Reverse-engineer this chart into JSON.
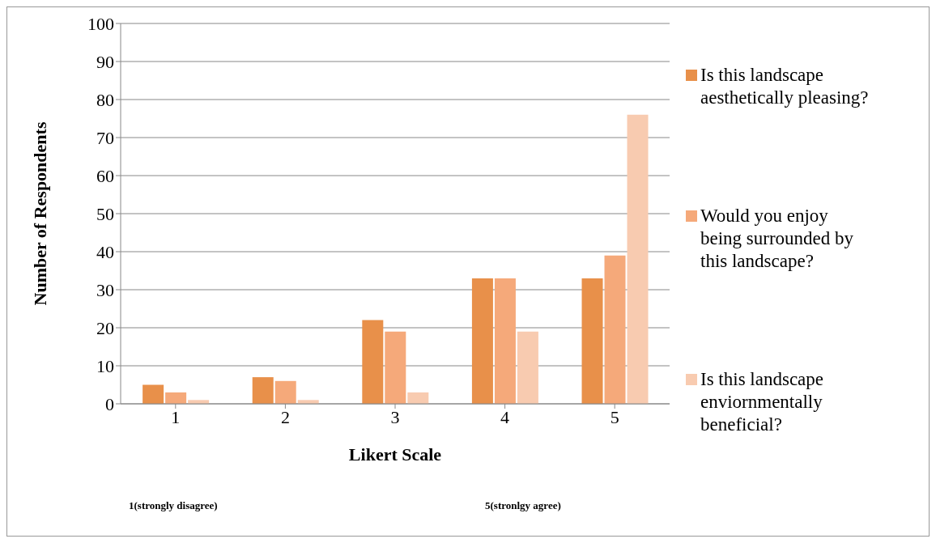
{
  "chart_data": {
    "type": "bar",
    "xlabel": "Likert Scale",
    "ylabel": "Number of Respondents",
    "categories": [
      "1",
      "2",
      "3",
      "4",
      "5"
    ],
    "series": [
      {
        "name": "Is this landscape aesthetically pleasing?",
        "color": "#e8904a",
        "values": [
          5,
          7,
          22,
          33,
          33
        ]
      },
      {
        "name": "Would you enjoy being surrounded by this landscape?",
        "color": "#f5a97a",
        "values": [
          3,
          6,
          19,
          33,
          39
        ]
      },
      {
        "name": "Is this landscape enviornmentally beneficial?",
        "color": "#f8cbb0",
        "values": [
          1,
          1,
          3,
          19,
          76
        ]
      }
    ],
    "ylim": [
      0,
      100
    ],
    "yticks": [
      0,
      10,
      20,
      30,
      40,
      50,
      60,
      70,
      80,
      90,
      100
    ],
    "grid": "y",
    "legend": "right",
    "annotations": [
      "1(strongly disagree)",
      "5(stronlgy agree)"
    ]
  }
}
